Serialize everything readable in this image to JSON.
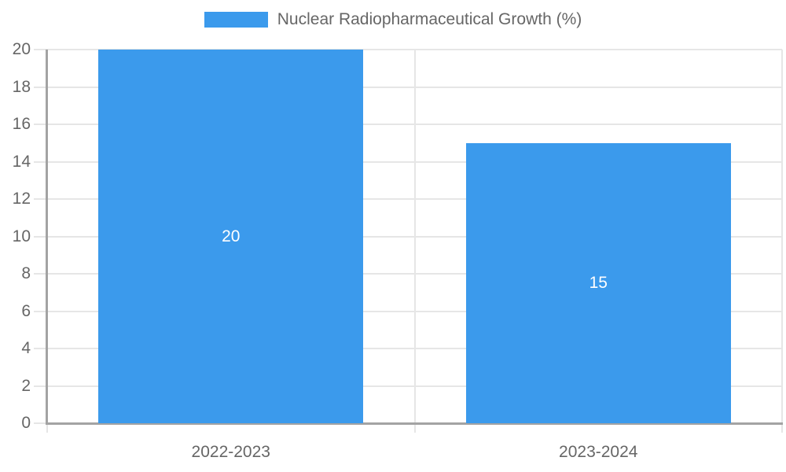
{
  "legend": {
    "label": "Nuclear Radiopharmaceutical Growth (%)"
  },
  "chart_data": {
    "type": "bar",
    "title": "",
    "xlabel": "",
    "ylabel": "",
    "categories": [
      "2022-2023",
      "2023-2024"
    ],
    "values": [
      20,
      15
    ],
    "data_labels": [
      "20",
      "15"
    ],
    "series_name": "Nuclear Radiopharmaceutical Growth (%)",
    "ylim": [
      0,
      20
    ],
    "yticks": [
      0,
      2,
      4,
      6,
      8,
      10,
      12,
      14,
      16,
      18,
      20
    ],
    "grid": true,
    "legend_position": "top",
    "colors": {
      "bar": "#3B9AEC",
      "data_label": "#FFFFFF",
      "grid": "#E6E6E6",
      "axis": "#A3A3A3",
      "tick_label": "#666666",
      "background": "#FFFFFF"
    }
  }
}
